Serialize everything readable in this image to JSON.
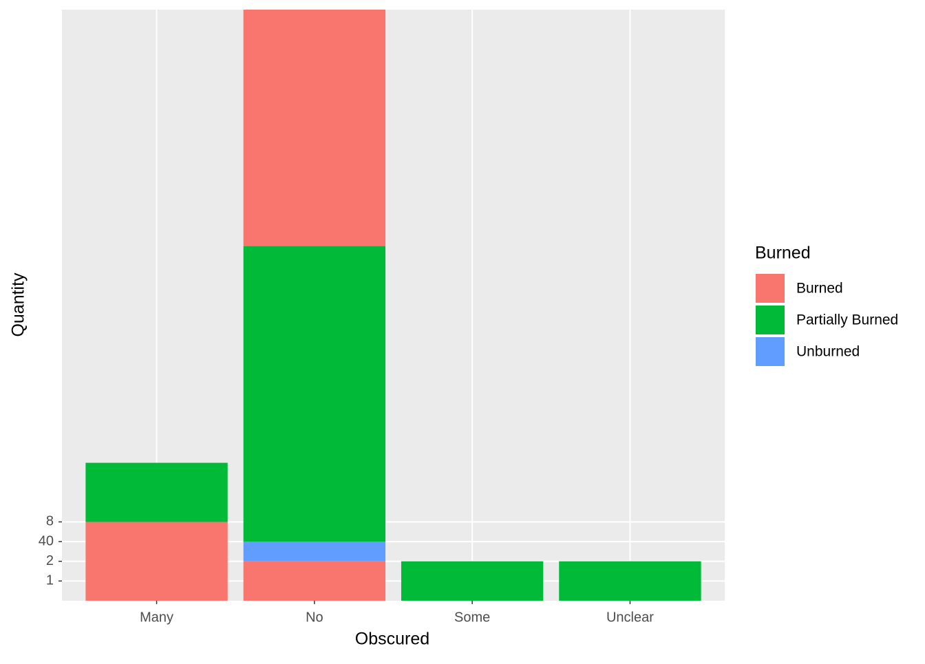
{
  "chart_data": {
    "type": "stacked-bar",
    "x_label": "Obscured",
    "y_label": "Quantity",
    "ylim": [
      0,
      30
    ],
    "yticks": [
      1,
      2,
      {
        "value": 3,
        "label": "40"
      },
      {
        "value": 4,
        "label": "8"
      }
    ],
    "grid": true,
    "bars": [
      {
        "category": "Many",
        "segments": [
          {
            "color": "#F8766D",
            "value": 4
          },
          {
            "color": "#00BA38",
            "value": 3
          }
        ]
      },
      {
        "category": "No",
        "segments": [
          {
            "color": "#F8766D",
            "value": 2
          },
          {
            "color": "#619CFF",
            "value": 1
          },
          {
            "color": "#00BA38",
            "value": 15
          },
          {
            "color": "#F8766D",
            "value": 12
          }
        ]
      },
      {
        "category": "Some",
        "segments": [
          {
            "color": "#00BA38",
            "value": 2
          }
        ]
      },
      {
        "category": "Unclear",
        "segments": [
          {
            "color": "#00BA38",
            "value": 2
          }
        ]
      }
    ],
    "legend": {
      "title": "Burned",
      "position": "right",
      "items": [
        {
          "name": "Burned",
          "color": "#F8766D"
        },
        {
          "name": "Partially Burned",
          "color": "#00BA38"
        },
        {
          "name": "Unburned",
          "color": "#619CFF"
        }
      ]
    }
  }
}
